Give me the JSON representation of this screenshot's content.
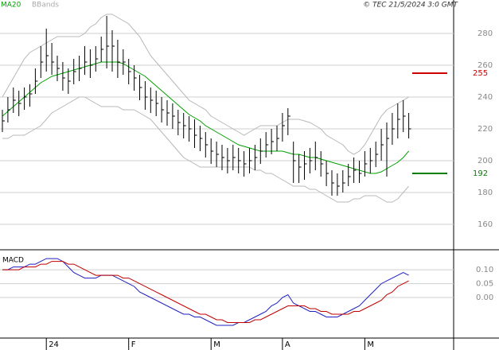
{
  "chart_data": [
    {
      "type": "ohlc",
      "credit": "© TEC 21/5/2024 3:0 GMT",
      "categories": [
        null,
        null,
        null,
        null,
        null,
        null,
        null,
        null,
        "24",
        null,
        null,
        null,
        null,
        null,
        null,
        null,
        null,
        null,
        null,
        null,
        null,
        null,
        null,
        "F",
        null,
        null,
        null,
        null,
        null,
        null,
        null,
        null,
        null,
        null,
        null,
        null,
        null,
        null,
        "M",
        null,
        null,
        null,
        null,
        null,
        null,
        null,
        null,
        null,
        null,
        null,
        null,
        "A",
        null,
        null,
        null,
        null,
        null,
        null,
        null,
        null,
        null,
        null,
        null,
        null,
        null,
        null,
        "M",
        null,
        null,
        null,
        null,
        null,
        null,
        null,
        null
      ],
      "high": [
        232,
        240,
        246,
        244,
        246,
        248,
        258,
        272,
        283,
        274,
        266,
        262,
        258,
        264,
        266,
        272,
        270,
        272,
        278,
        291,
        282,
        276,
        270,
        264,
        260,
        254,
        250,
        246,
        244,
        240,
        238,
        236,
        232,
        230,
        228,
        226,
        222,
        218,
        214,
        212,
        210,
        208,
        210,
        208,
        206,
        208,
        210,
        214,
        218,
        220,
        222,
        230,
        233,
        212,
        204,
        206,
        208,
        212,
        206,
        200,
        194,
        192,
        194,
        198,
        202,
        200,
        206,
        208,
        212,
        220,
        224,
        230,
        236,
        238,
        230
      ],
      "low": [
        218,
        224,
        230,
        228,
        232,
        234,
        242,
        252,
        256,
        254,
        250,
        244,
        242,
        248,
        250,
        254,
        252,
        256,
        262,
        258,
        256,
        252,
        254,
        248,
        244,
        238,
        232,
        230,
        228,
        224,
        222,
        220,
        216,
        214,
        212,
        208,
        206,
        202,
        198,
        196,
        194,
        192,
        194,
        192,
        190,
        192,
        194,
        198,
        202,
        204,
        206,
        212,
        216,
        186,
        186,
        188,
        192,
        194,
        190,
        184,
        178,
        178,
        180,
        184,
        186,
        186,
        190,
        192,
        196,
        200,
        190,
        210,
        214,
        218,
        214
      ],
      "close": [
        225,
        232,
        238,
        236,
        240,
        242,
        250,
        262,
        266,
        262,
        258,
        252,
        250,
        256,
        258,
        262,
        260,
        264,
        270,
        272,
        272,
        262,
        262,
        256,
        252,
        246,
        240,
        238,
        236,
        232,
        230,
        228,
        224,
        222,
        220,
        216,
        214,
        210,
        206,
        204,
        202,
        200,
        202,
        200,
        198,
        200,
        202,
        206,
        210,
        212,
        214,
        222,
        228,
        200,
        196,
        198,
        200,
        202,
        198,
        192,
        186,
        184,
        186,
        190,
        194,
        192,
        198,
        200,
        204,
        210,
        214,
        220,
        226,
        228,
        220
      ],
      "bar_color": "#000000",
      "series": [
        {
          "name": "MA20",
          "color": "#00a000",
          "values": [
            228,
            231,
            234,
            237,
            240,
            243,
            246,
            249,
            251,
            253,
            254,
            255,
            256,
            257,
            258,
            259,
            260,
            261,
            262,
            262,
            262,
            262,
            261,
            259,
            257,
            255,
            253,
            250,
            247,
            244,
            241,
            238,
            235,
            232,
            229,
            227,
            225,
            222,
            220,
            218,
            216,
            214,
            212,
            210,
            209,
            208,
            207,
            206,
            206,
            206,
            206,
            206,
            205,
            204,
            204,
            203,
            202,
            202,
            201,
            200,
            199,
            198,
            197,
            196,
            195,
            194,
            193,
            192,
            192,
            193,
            195,
            197,
            199,
            202,
            206
          ]
        },
        {
          "name": "BBands",
          "color": "#b8b8b8",
          "upper": [
            240,
            246,
            252,
            258,
            264,
            268,
            270,
            272,
            274,
            276,
            278,
            278,
            278,
            278,
            278,
            280,
            284,
            286,
            290,
            292,
            292,
            290,
            288,
            286,
            282,
            278,
            272,
            266,
            262,
            258,
            254,
            250,
            246,
            242,
            238,
            236,
            234,
            232,
            228,
            226,
            224,
            222,
            220,
            218,
            216,
            218,
            220,
            222,
            222,
            222,
            222,
            224,
            226,
            226,
            226,
            225,
            224,
            222,
            220,
            216,
            214,
            212,
            210,
            206,
            204,
            206,
            210,
            216,
            222,
            228,
            232,
            234,
            236,
            238,
            240
          ],
          "lower": [
            214,
            214,
            216,
            216,
            216,
            218,
            220,
            222,
            226,
            230,
            232,
            234,
            236,
            238,
            240,
            240,
            238,
            236,
            234,
            234,
            234,
            234,
            232,
            232,
            232,
            230,
            228,
            226,
            222,
            218,
            214,
            210,
            206,
            202,
            200,
            198,
            196,
            196,
            196,
            196,
            196,
            196,
            196,
            196,
            196,
            196,
            194,
            194,
            192,
            192,
            190,
            188,
            186,
            184,
            184,
            184,
            182,
            182,
            180,
            178,
            176,
            174,
            174,
            174,
            176,
            176,
            178,
            178,
            178,
            176,
            174,
            174,
            176,
            180,
            184
          ]
        }
      ],
      "levels": [
        {
          "value": 255,
          "color": "#cc0000"
        },
        {
          "value": 192,
          "color": "#008000"
        }
      ],
      "ylim": [
        144.5,
        301
      ],
      "yticks": [
        160,
        180,
        200,
        220,
        240,
        260,
        280
      ],
      "grid": true
    },
    {
      "type": "line",
      "title": "MACD",
      "series": [
        {
          "color": "#2020c0",
          "values": [
            0.1,
            0.1,
            0.11,
            0.11,
            0.11,
            0.12,
            0.12,
            0.13,
            0.14,
            0.14,
            0.14,
            0.13,
            0.11,
            0.09,
            0.08,
            0.07,
            0.07,
            0.07,
            0.08,
            0.08,
            0.08,
            0.07,
            0.06,
            0.05,
            0.04,
            0.02,
            0.01,
            0.0,
            -0.01,
            -0.02,
            -0.03,
            -0.04,
            -0.05,
            -0.06,
            -0.06,
            -0.07,
            -0.07,
            -0.08,
            -0.09,
            -0.1,
            -0.1,
            -0.1,
            -0.1,
            -0.09,
            -0.09,
            -0.08,
            -0.07,
            -0.06,
            -0.05,
            -0.03,
            -0.02,
            0.0,
            0.01,
            -0.02,
            -0.03,
            -0.04,
            -0.05,
            -0.05,
            -0.06,
            -0.07,
            -0.07,
            -0.07,
            -0.06,
            -0.05,
            -0.04,
            -0.03,
            -0.01,
            0.01,
            0.03,
            0.05,
            0.06,
            0.07,
            0.08,
            0.09,
            0.08
          ]
        },
        {
          "color": "#c00000",
          "values": [
            0.1,
            0.1,
            0.1,
            0.1,
            0.11,
            0.11,
            0.11,
            0.12,
            0.12,
            0.13,
            0.13,
            0.13,
            0.12,
            0.12,
            0.11,
            0.1,
            0.09,
            0.08,
            0.08,
            0.08,
            0.08,
            0.08,
            0.07,
            0.07,
            0.06,
            0.05,
            0.04,
            0.03,
            0.02,
            0.01,
            0.0,
            -0.01,
            -0.02,
            -0.03,
            -0.04,
            -0.05,
            -0.06,
            -0.06,
            -0.07,
            -0.08,
            -0.08,
            -0.09,
            -0.09,
            -0.09,
            -0.09,
            -0.09,
            -0.08,
            -0.08,
            -0.07,
            -0.06,
            -0.05,
            -0.04,
            -0.03,
            -0.03,
            -0.03,
            -0.03,
            -0.04,
            -0.04,
            -0.05,
            -0.05,
            -0.06,
            -0.06,
            -0.06,
            -0.06,
            -0.05,
            -0.05,
            -0.04,
            -0.03,
            -0.02,
            -0.01,
            0.01,
            0.02,
            0.04,
            0.05,
            0.06
          ]
        }
      ],
      "ylim": [
        -0.143,
        0.169
      ],
      "yticks": [
        {
          "value": 0.1,
          "label": "0.10"
        },
        {
          "value": 0.05,
          "label": "0.05"
        },
        {
          "value": 0,
          "label": "0.00"
        }
      ],
      "grid": true
    }
  ]
}
